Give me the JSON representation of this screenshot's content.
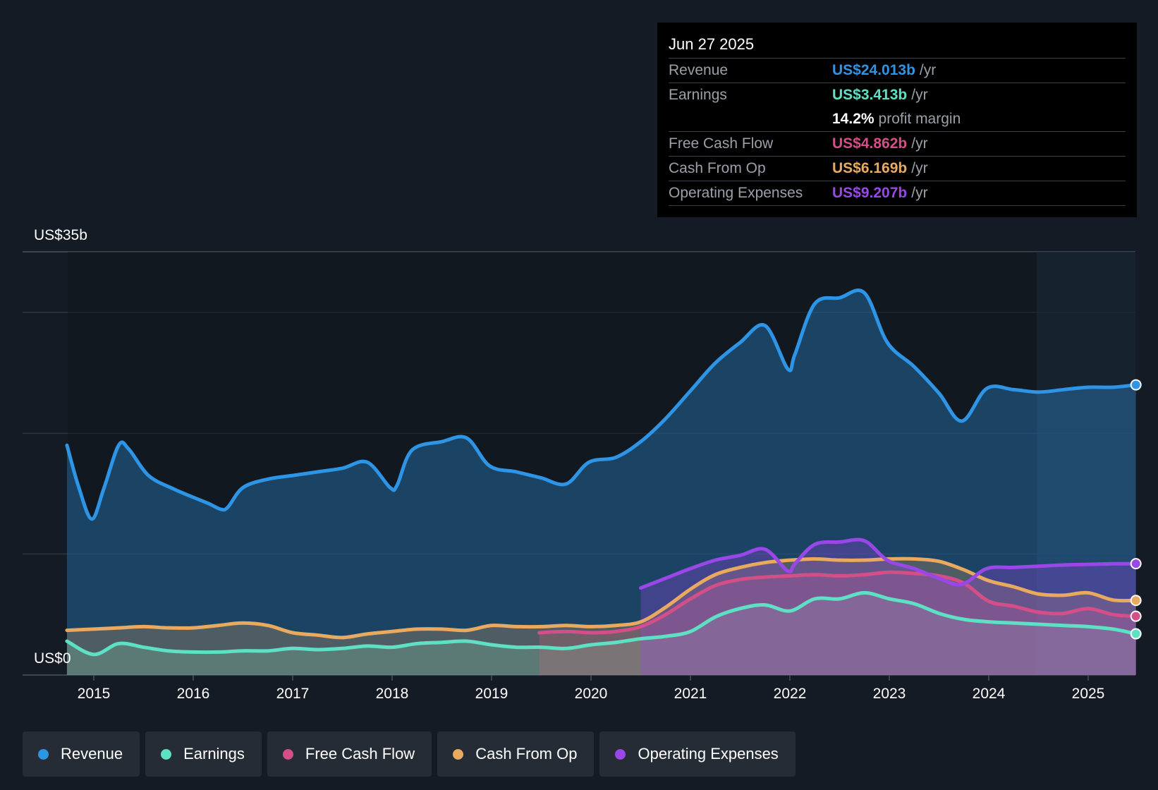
{
  "tooltip": {
    "date": "Jun 27 2025",
    "rows": [
      {
        "label": "Revenue",
        "value": "US$24.013b",
        "unit": "/yr"
      },
      {
        "label": "Earnings",
        "value": "US$3.413b",
        "unit": "/yr"
      },
      {
        "margin_value": "14.2%",
        "margin_label": "profit margin"
      },
      {
        "label": "Free Cash Flow",
        "value": "US$4.862b",
        "unit": "/yr"
      },
      {
        "label": "Cash From Op",
        "value": "US$6.169b",
        "unit": "/yr"
      },
      {
        "label": "Operating Expenses",
        "value": "US$9.207b",
        "unit": "/yr"
      }
    ]
  },
  "chart_data": {
    "type": "area",
    "ytop_label": "US$35b",
    "ybottom_label": "US$0",
    "ylim": [
      0,
      35
    ],
    "xlim": [
      2014.5,
      2025.5
    ],
    "x_ticks": [
      "2015",
      "2016",
      "2017",
      "2018",
      "2019",
      "2020",
      "2021",
      "2022",
      "2023",
      "2024",
      "2025"
    ],
    "grid": true,
    "legend_position": "bottom",
    "series": [
      {
        "name": "Revenue",
        "color": "#2e94e6",
        "points": [
          [
            2014.73,
            19.0
          ],
          [
            2014.85,
            15.5
          ],
          [
            2014.98,
            12.9
          ],
          [
            2015.1,
            15.4
          ],
          [
            2015.25,
            19.0
          ],
          [
            2015.35,
            18.7
          ],
          [
            2015.55,
            16.5
          ],
          [
            2015.8,
            15.4
          ],
          [
            2016.0,
            14.7
          ],
          [
            2016.15,
            14.2
          ],
          [
            2016.28,
            13.7
          ],
          [
            2016.35,
            13.9
          ],
          [
            2016.5,
            15.5
          ],
          [
            2016.75,
            16.2
          ],
          [
            2017.0,
            16.5
          ],
          [
            2017.25,
            16.8
          ],
          [
            2017.5,
            17.1
          ],
          [
            2017.75,
            17.6
          ],
          [
            2017.98,
            15.5
          ],
          [
            2018.05,
            15.7
          ],
          [
            2018.2,
            18.6
          ],
          [
            2018.5,
            19.3
          ],
          [
            2018.75,
            19.6
          ],
          [
            2018.98,
            17.3
          ],
          [
            2019.25,
            16.8
          ],
          [
            2019.5,
            16.3
          ],
          [
            2019.75,
            15.8
          ],
          [
            2019.98,
            17.6
          ],
          [
            2020.25,
            18.0
          ],
          [
            2020.5,
            19.3
          ],
          [
            2020.75,
            21.2
          ],
          [
            2021.0,
            23.5
          ],
          [
            2021.25,
            25.8
          ],
          [
            2021.5,
            27.5
          ],
          [
            2021.75,
            28.9
          ],
          [
            2021.98,
            25.3
          ],
          [
            2022.05,
            26.5
          ],
          [
            2022.25,
            30.7
          ],
          [
            2022.5,
            31.2
          ],
          [
            2022.75,
            31.6
          ],
          [
            2022.98,
            27.5
          ],
          [
            2023.25,
            25.5
          ],
          [
            2023.5,
            23.3
          ],
          [
            2023.73,
            21.0
          ],
          [
            2023.98,
            23.7
          ],
          [
            2024.25,
            23.6
          ],
          [
            2024.5,
            23.4
          ],
          [
            2024.75,
            23.6
          ],
          [
            2025.0,
            23.8
          ],
          [
            2025.25,
            23.8
          ],
          [
            2025.48,
            24.0
          ]
        ]
      },
      {
        "name": "Earnings",
        "color": "#5ee0c4",
        "points": [
          [
            2014.73,
            2.8
          ],
          [
            2015.0,
            1.7
          ],
          [
            2015.25,
            2.6
          ],
          [
            2015.5,
            2.3
          ],
          [
            2015.75,
            2.0
          ],
          [
            2016.0,
            1.9
          ],
          [
            2016.25,
            1.9
          ],
          [
            2016.5,
            2.0
          ],
          [
            2016.75,
            2.0
          ],
          [
            2017.0,
            2.2
          ],
          [
            2017.25,
            2.1
          ],
          [
            2017.5,
            2.2
          ],
          [
            2017.75,
            2.4
          ],
          [
            2018.0,
            2.3
          ],
          [
            2018.25,
            2.6
          ],
          [
            2018.5,
            2.7
          ],
          [
            2018.75,
            2.8
          ],
          [
            2019.0,
            2.5
          ],
          [
            2019.25,
            2.3
          ],
          [
            2019.5,
            2.3
          ],
          [
            2019.75,
            2.2
          ],
          [
            2020.0,
            2.5
          ],
          [
            2020.25,
            2.7
          ],
          [
            2020.5,
            3.0
          ],
          [
            2020.75,
            3.2
          ],
          [
            2021.0,
            3.6
          ],
          [
            2021.25,
            4.8
          ],
          [
            2021.5,
            5.5
          ],
          [
            2021.75,
            5.8
          ],
          [
            2022.0,
            5.3
          ],
          [
            2022.25,
            6.3
          ],
          [
            2022.5,
            6.3
          ],
          [
            2022.75,
            6.8
          ],
          [
            2023.0,
            6.3
          ],
          [
            2023.25,
            5.9
          ],
          [
            2023.5,
            5.1
          ],
          [
            2023.75,
            4.6
          ],
          [
            2024.0,
            4.4
          ],
          [
            2024.25,
            4.3
          ],
          [
            2024.5,
            4.2
          ],
          [
            2024.75,
            4.1
          ],
          [
            2025.0,
            4.0
          ],
          [
            2025.25,
            3.8
          ],
          [
            2025.48,
            3.41
          ]
        ]
      },
      {
        "name": "Free Cash Flow",
        "color": "#d44f88",
        "points": [
          [
            2019.48,
            3.5
          ],
          [
            2019.75,
            3.6
          ],
          [
            2020.0,
            3.5
          ],
          [
            2020.25,
            3.6
          ],
          [
            2020.5,
            4.0
          ],
          [
            2020.75,
            5.0
          ],
          [
            2021.0,
            6.3
          ],
          [
            2021.25,
            7.4
          ],
          [
            2021.5,
            7.9
          ],
          [
            2021.75,
            8.1
          ],
          [
            2022.0,
            8.2
          ],
          [
            2022.25,
            8.3
          ],
          [
            2022.5,
            8.2
          ],
          [
            2022.75,
            8.3
          ],
          [
            2023.0,
            8.5
          ],
          [
            2023.25,
            8.4
          ],
          [
            2023.5,
            8.2
          ],
          [
            2023.75,
            7.6
          ],
          [
            2024.0,
            6.1
          ],
          [
            2024.25,
            5.7
          ],
          [
            2024.5,
            5.2
          ],
          [
            2024.75,
            5.1
          ],
          [
            2025.0,
            5.5
          ],
          [
            2025.25,
            5.0
          ],
          [
            2025.48,
            4.86
          ]
        ]
      },
      {
        "name": "Cash From Op",
        "color": "#e9a95e",
        "points": [
          [
            2014.73,
            3.7
          ],
          [
            2015.0,
            3.8
          ],
          [
            2015.25,
            3.9
          ],
          [
            2015.5,
            4.0
          ],
          [
            2015.75,
            3.9
          ],
          [
            2016.0,
            3.9
          ],
          [
            2016.25,
            4.1
          ],
          [
            2016.5,
            4.3
          ],
          [
            2016.75,
            4.1
          ],
          [
            2017.0,
            3.5
          ],
          [
            2017.25,
            3.3
          ],
          [
            2017.5,
            3.1
          ],
          [
            2017.75,
            3.4
          ],
          [
            2018.0,
            3.6
          ],
          [
            2018.25,
            3.8
          ],
          [
            2018.5,
            3.8
          ],
          [
            2018.75,
            3.7
          ],
          [
            2019.0,
            4.1
          ],
          [
            2019.25,
            4.0
          ],
          [
            2019.5,
            4.0
          ],
          [
            2019.75,
            4.1
          ],
          [
            2020.0,
            4.0
          ],
          [
            2020.25,
            4.1
          ],
          [
            2020.5,
            4.4
          ],
          [
            2020.75,
            5.6
          ],
          [
            2021.0,
            7.1
          ],
          [
            2021.25,
            8.3
          ],
          [
            2021.5,
            8.9
          ],
          [
            2021.75,
            9.3
          ],
          [
            2022.0,
            9.5
          ],
          [
            2022.25,
            9.6
          ],
          [
            2022.5,
            9.5
          ],
          [
            2022.75,
            9.5
          ],
          [
            2023.0,
            9.6
          ],
          [
            2023.25,
            9.6
          ],
          [
            2023.5,
            9.4
          ],
          [
            2023.75,
            8.7
          ],
          [
            2024.0,
            7.8
          ],
          [
            2024.25,
            7.3
          ],
          [
            2024.5,
            6.7
          ],
          [
            2024.75,
            6.6
          ],
          [
            2025.0,
            6.8
          ],
          [
            2025.25,
            6.2
          ],
          [
            2025.48,
            6.17
          ]
        ]
      },
      {
        "name": "Operating Expenses",
        "color": "#9a47e8",
        "points": [
          [
            2020.5,
            7.2
          ],
          [
            2020.75,
            8.0
          ],
          [
            2021.0,
            8.8
          ],
          [
            2021.25,
            9.5
          ],
          [
            2021.5,
            9.9
          ],
          [
            2021.75,
            10.4
          ],
          [
            2021.98,
            8.6
          ],
          [
            2022.05,
            9.2
          ],
          [
            2022.25,
            10.8
          ],
          [
            2022.5,
            11.0
          ],
          [
            2022.75,
            11.1
          ],
          [
            2022.98,
            9.5
          ],
          [
            2023.25,
            8.8
          ],
          [
            2023.5,
            8.0
          ],
          [
            2023.73,
            7.5
          ],
          [
            2023.98,
            8.8
          ],
          [
            2024.25,
            8.9
          ],
          [
            2024.5,
            9.0
          ],
          [
            2024.75,
            9.1
          ],
          [
            2025.0,
            9.15
          ],
          [
            2025.25,
            9.2
          ],
          [
            2025.48,
            9.21
          ]
        ]
      }
    ]
  }
}
